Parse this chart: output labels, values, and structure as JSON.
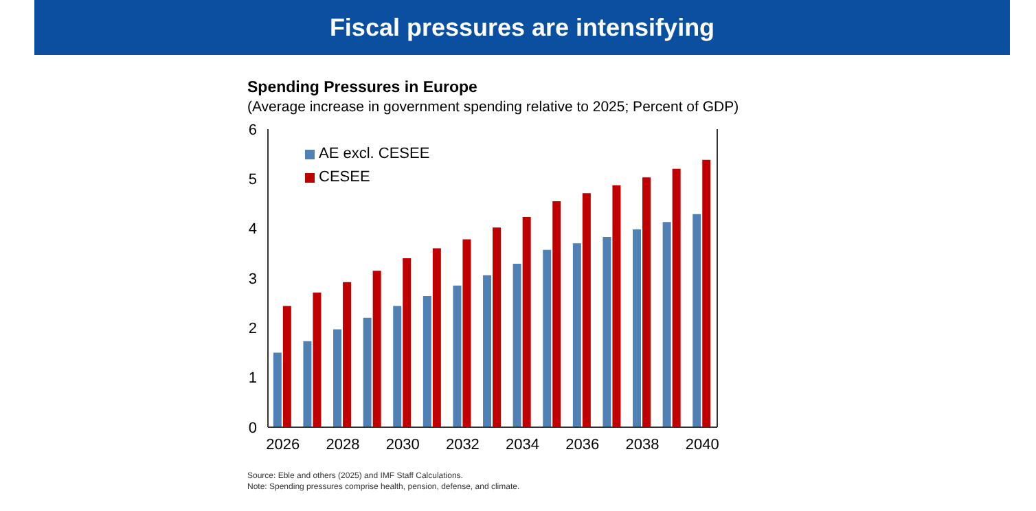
{
  "chart_data": {
    "type": "bar",
    "title": "Fiscal pressures are intensifying",
    "subtitle": "Spending Pressures in Europe",
    "annotations": [
      "(Average increase in government spending relative to 2025; Percent of GDP)",
      "Source: Eble and others (2025) and IMF Staff Calculations.",
      "Note: Spending pressures comprise health, pension, defense, and climate."
    ],
    "categories": [
      "2026",
      null,
      "2028",
      null,
      "2030",
      null,
      "2032",
      null,
      "2034",
      null,
      "2036",
      null,
      "2038",
      null,
      "2040"
    ],
    "series": [
      {
        "name": "AE excl. CESEE",
        "color": "#4f81b4",
        "values": [
          1.5,
          1.73,
          1.97,
          2.2,
          2.44,
          2.64,
          2.85,
          3.06,
          3.29,
          3.57,
          3.7,
          3.83,
          3.98,
          4.13,
          4.29
        ]
      },
      {
        "name": "CESEE",
        "color": "#c00000",
        "values": [
          2.44,
          2.71,
          2.92,
          3.15,
          3.4,
          3.6,
          3.78,
          4.02,
          4.23,
          4.55,
          4.71,
          4.87,
          5.03,
          5.2,
          5.38
        ]
      }
    ],
    "ylim": [
      0,
      6
    ],
    "yticks": [
      0,
      1,
      2,
      3,
      4,
      5,
      6
    ],
    "legend": "top left"
  }
}
